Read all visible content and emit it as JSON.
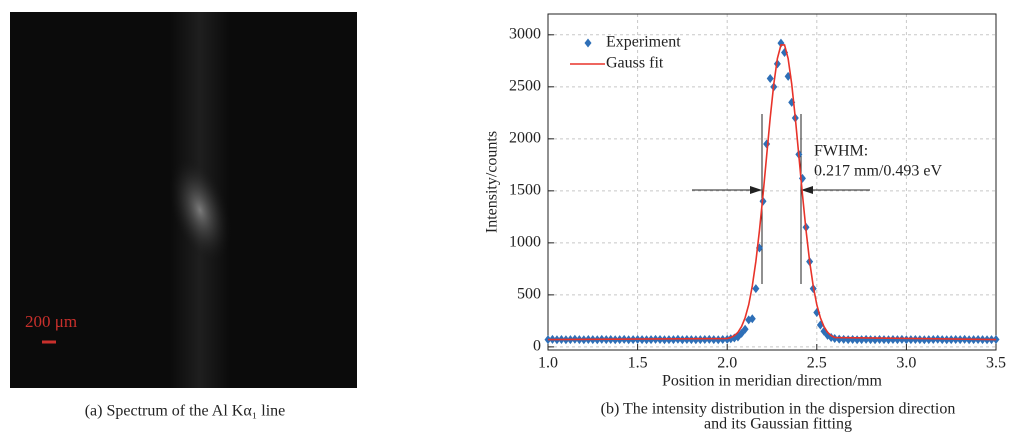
{
  "chart_data": [
    {
      "type": "image",
      "caption": "(a) Spectrum of the Al Kα₁ line",
      "scale_bar_label": "200 μm"
    },
    {
      "type": "scatter",
      "caption": [
        "(b) The intensity distribution in the dispersion direction",
        "and its Gaussian fitting"
      ],
      "x_label": "Position in meridian direction/mm",
      "y_label": "Intensity/counts",
      "annotations": [
        "FWHM:",
        "0.217 mm/0.493 eV"
      ],
      "xlim": [
        1.0,
        3.5
      ],
      "ylim": [
        -30,
        3200
      ],
      "xticks": [
        {
          "value": 1,
          "label": "1.0"
        },
        1.5,
        {
          "value": 2,
          "label": "2.0"
        },
        2.5,
        {
          "value": 3,
          "label": "3.0"
        },
        3.5
      ],
      "yticks": [
        0,
        500,
        1000,
        1500,
        2000,
        2500,
        3000
      ],
      "grid": true,
      "legend": "upper left",
      "series": [
        {
          "name": "Experiment",
          "type": "scatter",
          "color": "#2e6fb7",
          "x": [
            1.0,
            1.025,
            1.05,
            1.075,
            1.1,
            1.125,
            1.15,
            1.175,
            1.2,
            1.225,
            1.25,
            1.275,
            1.3,
            1.325,
            1.35,
            1.375,
            1.4,
            1.425,
            1.45,
            1.475,
            1.5,
            1.525,
            1.55,
            1.575,
            1.6,
            1.625,
            1.65,
            1.675,
            1.7,
            1.725,
            1.75,
            1.775,
            1.8,
            1.825,
            1.85,
            1.875,
            1.9,
            1.925,
            1.95,
            1.975,
            2.0,
            2.02,
            2.04,
            2.06,
            2.08,
            2.1,
            2.12,
            2.14,
            2.16,
            2.18,
            2.2,
            2.22,
            2.24,
            2.26,
            2.28,
            2.3,
            2.32,
            2.34,
            2.36,
            2.38,
            2.4,
            2.42,
            2.44,
            2.46,
            2.48,
            2.5,
            2.52,
            2.54,
            2.56,
            2.58,
            2.6,
            2.625,
            2.65,
            2.675,
            2.7,
            2.725,
            2.75,
            2.775,
            2.8,
            2.825,
            2.85,
            2.875,
            2.9,
            2.925,
            2.95,
            2.975,
            3.0,
            3.025,
            3.05,
            3.075,
            3.1,
            3.125,
            3.15,
            3.175,
            3.2,
            3.225,
            3.25,
            3.275,
            3.3,
            3.325,
            3.35,
            3.375,
            3.4,
            3.425,
            3.45,
            3.475,
            3.5
          ],
          "values": [
            70,
            72,
            68,
            71,
            69,
            70,
            73,
            70,
            68,
            71,
            70,
            69,
            72,
            70,
            71,
            68,
            70,
            72,
            69,
            70,
            71,
            70,
            68,
            70,
            72,
            71,
            69,
            70,
            70,
            73,
            69,
            71,
            70,
            68,
            70,
            71,
            72,
            70,
            69,
            71,
            72,
            78,
            85,
            95,
            130,
            170,
            260,
            270,
            560,
            950,
            1400,
            1950,
            2580,
            2500,
            2720,
            2920,
            2830,
            2600,
            2350,
            2200,
            1850,
            1620,
            1150,
            820,
            560,
            330,
            210,
            150,
            110,
            90,
            80,
            75,
            72,
            70,
            71,
            69,
            70,
            72,
            70,
            68,
            71,
            70,
            69,
            71,
            70,
            72,
            69,
            70,
            71,
            70,
            68,
            70,
            71,
            73,
            70,
            69,
            70,
            71,
            70,
            72,
            69,
            70,
            71,
            70,
            69,
            70,
            71
          ]
        },
        {
          "name": "Gauss fit",
          "type": "line",
          "color": "#e8332a",
          "x": [
            1.0,
            2.0,
            2.02,
            2.04,
            2.06,
            2.08,
            2.1,
            2.12,
            2.14,
            2.16,
            2.18,
            2.2,
            2.22,
            2.24,
            2.26,
            2.28,
            2.3,
            2.32,
            2.34,
            2.36,
            2.38,
            2.4,
            2.42,
            2.44,
            2.46,
            2.48,
            2.5,
            2.52,
            2.54,
            2.56,
            2.58,
            2.6,
            3.5
          ],
          "values": [
            70,
            80,
            90,
            108,
            140,
            195,
            280,
            405,
            585,
            822,
            1119,
            1463,
            1835,
            2202,
            2527,
            2772,
            2903,
            2903,
            2772,
            2527,
            2202,
            1835,
            1463,
            1119,
            822,
            585,
            405,
            280,
            195,
            140,
            108,
            90,
            70
          ]
        }
      ]
    }
  ]
}
